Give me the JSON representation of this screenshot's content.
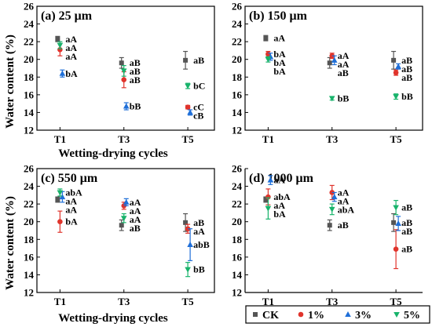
{
  "legend": [
    {
      "name": "CK",
      "color": "#555555",
      "marker": "square"
    },
    {
      "name": "1%",
      "color": "#e0342c",
      "marker": "circle"
    },
    {
      "name": "3%",
      "color": "#1f6fd8",
      "marker": "triangle-up"
    },
    {
      "name": "5%",
      "color": "#18b36b",
      "marker": "triangle-down"
    }
  ],
  "shared_ylabel_top": "Water content (%)",
  "shared_ylabel_bottom": "Water content (%)",
  "shared_xlabel_top": "Wetting-drying cycles",
  "shared_xlabel_bottom": "Wetting-drying cycles",
  "chart_data": [
    {
      "type": "scatter",
      "title": "(a) 25 μm",
      "categories": [
        "T1",
        "T3",
        "T5"
      ],
      "ylim": [
        12,
        26
      ],
      "yticks": [
        12,
        14,
        16,
        18,
        20,
        22,
        24,
        26
      ],
      "series": [
        {
          "name": "CK",
          "values": [
            22.3,
            19.6,
            19.9
          ],
          "errors": [
            0.3,
            0.6,
            1.0
          ],
          "labels": [
            "aA",
            "aB",
            "aB"
          ]
        },
        {
          "name": "1%",
          "values": [
            21.1,
            17.7,
            14.6
          ],
          "errors": [
            0.7,
            0.9,
            0.2
          ],
          "labels": [
            "aA",
            "aB",
            "cC"
          ]
        },
        {
          "name": "3%",
          "values": [
            18.4,
            14.7,
            14.0
          ],
          "errors": [
            0.4,
            0.4,
            0.3
          ],
          "labels": [
            "bA",
            "bB",
            "cB"
          ]
        },
        {
          "name": "5%",
          "values": [
            21.6,
            18.7,
            17.0
          ],
          "errors": [
            0.4,
            0.6,
            0.3
          ],
          "labels": [
            "aA",
            "aB",
            "bC"
          ]
        }
      ]
    },
    {
      "type": "scatter",
      "title": "(b) 150 μm",
      "categories": [
        "T1",
        "T3",
        "T5"
      ],
      "ylim": [
        12,
        26
      ],
      "yticks": [
        12,
        14,
        16,
        18,
        20,
        22,
        24,
        26
      ],
      "series": [
        {
          "name": "CK",
          "values": [
            22.4,
            19.6,
            19.9
          ],
          "errors": [
            0.3,
            0.6,
            1.0
          ],
          "labels": [
            "aA",
            "aB",
            "aB"
          ]
        },
        {
          "name": "1%",
          "values": [
            20.6,
            20.4,
            18.5
          ],
          "errors": [
            0.3,
            0.3,
            0.3
          ],
          "labels": [
            "bA",
            "aA",
            "aB"
          ]
        },
        {
          "name": "3%",
          "values": [
            20.3,
            19.9,
            19.2
          ],
          "errors": [
            0.4,
            0.5,
            0.3
          ],
          "labels": [
            "bA",
            "aA",
            "aB"
          ]
        },
        {
          "name": "5%",
          "values": [
            20.0,
            15.6,
            15.8
          ],
          "errors": [
            0.3,
            0.2,
            0.3
          ],
          "labels": [
            "bA",
            "bB",
            "bB"
          ]
        }
      ]
    },
    {
      "type": "scatter",
      "title": "(c) 550 μm",
      "categories": [
        "T1",
        "T3",
        "T5"
      ],
      "ylim": [
        12,
        26
      ],
      "yticks": [
        12,
        14,
        16,
        18,
        20,
        22,
        24,
        26
      ],
      "series": [
        {
          "name": "CK",
          "values": [
            22.5,
            19.6,
            19.9
          ],
          "errors": [
            0.3,
            0.6,
            1.0
          ],
          "labels": [
            "aA",
            "aB",
            "aB"
          ]
        },
        {
          "name": "1%",
          "values": [
            20.0,
            21.8,
            19.2
          ],
          "errors": [
            1.2,
            0.4,
            0.5
          ],
          "labels": [
            "bA",
            "aA",
            "aA"
          ]
        },
        {
          "name": "3%",
          "values": [
            22.8,
            22.2,
            17.4
          ],
          "errors": [
            0.6,
            0.4,
            1.8
          ],
          "labels": [
            "aA",
            "aA",
            "abB"
          ]
        },
        {
          "name": "5%",
          "values": [
            23.3,
            20.4,
            14.6
          ],
          "errors": [
            0.4,
            0.5,
            0.8
          ],
          "labels": [
            "abA",
            "aA",
            "bB"
          ]
        }
      ]
    },
    {
      "type": "scatter",
      "title": "(d) 1000 μm",
      "categories": [
        "T1",
        "T3",
        "T5"
      ],
      "ylim": [
        12,
        26
      ],
      "yticks": [
        12,
        14,
        16,
        18,
        20,
        22,
        24,
        26
      ],
      "series": [
        {
          "name": "CK",
          "values": [
            22.5,
            19.6,
            19.9
          ],
          "errors": [
            0.3,
            0.6,
            1.0
          ],
          "labels": [
            "aA",
            "aB",
            "aB"
          ]
        },
        {
          "name": "1%",
          "values": [
            22.8,
            23.3,
            16.9
          ],
          "errors": [
            0.9,
            0.8,
            2.2
          ],
          "labels": [
            "abA",
            "aA",
            "aB"
          ]
        },
        {
          "name": "3%",
          "values": [
            24.7,
            22.8,
            19.8
          ],
          "errors": [
            0.5,
            0.5,
            0.8
          ],
          "labels": [
            "aA",
            "aA",
            "aB"
          ]
        },
        {
          "name": "5%",
          "values": [
            21.5,
            21.4,
            21.6
          ],
          "errors": [
            1.2,
            0.6,
            0.8
          ],
          "labels": [
            "bA",
            "abA",
            "aB"
          ]
        }
      ]
    }
  ]
}
